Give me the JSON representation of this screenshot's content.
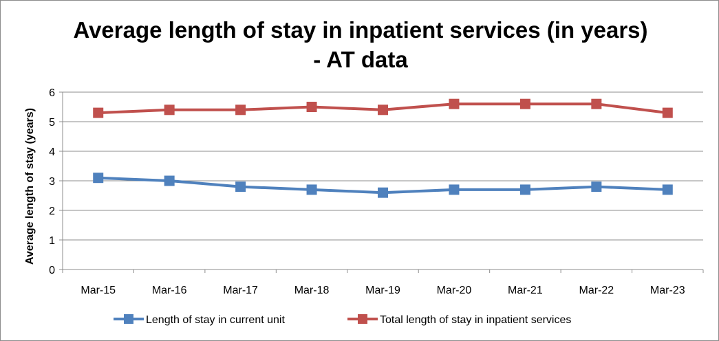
{
  "chart_data": {
    "type": "line",
    "title": "Average length of stay in inpatient services (in years)",
    "subtitle": "- AT data",
    "xlabel": "",
    "ylabel": "Average length of stay (years)",
    "ylim": [
      0,
      6
    ],
    "yticks": [
      0,
      1,
      2,
      3,
      4,
      5,
      6
    ],
    "grid": true,
    "legend_position": "bottom",
    "categories": [
      "Mar-15",
      "Mar-16",
      "Mar-17",
      "Mar-18",
      "Mar-19",
      "Mar-20",
      "Mar-21",
      "Mar-22",
      "Mar-23"
    ],
    "series": [
      {
        "name": "Length of stay in current unit",
        "color": "#4f81bd",
        "marker": "square",
        "values": [
          3.1,
          3.0,
          2.8,
          2.7,
          2.6,
          2.7,
          2.7,
          2.8,
          2.7
        ]
      },
      {
        "name": "Total length of stay in inpatient services",
        "color": "#c0504d",
        "marker": "square",
        "values": [
          5.3,
          5.4,
          5.4,
          5.5,
          5.4,
          5.6,
          5.6,
          5.6,
          5.3
        ]
      }
    ]
  }
}
